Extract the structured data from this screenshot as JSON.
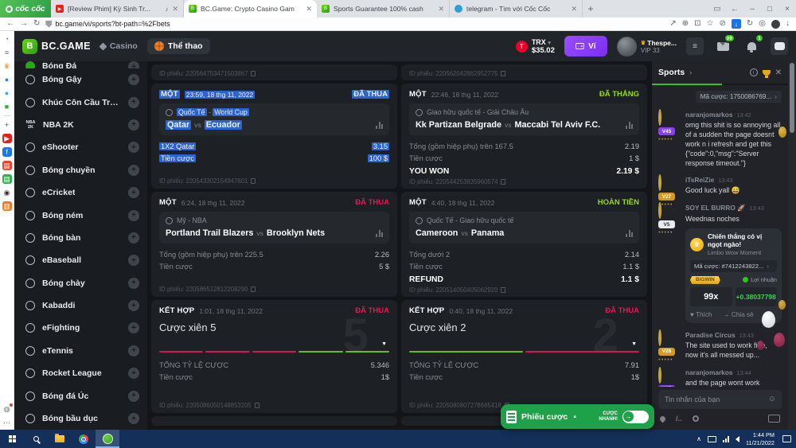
{
  "browser": {
    "brand": "cốc cốc",
    "tabs": [
      {
        "title": "[Review Phim] Kỳ Sinh Tr...",
        "icon": "youtube",
        "audio": true,
        "active": false
      },
      {
        "title": "BC.Game: Crypto Casino Gam",
        "icon": "bcgame",
        "audio": false,
        "active": true
      },
      {
        "title": "Sports Guarantee 100% cash",
        "icon": "bcgame",
        "audio": false,
        "active": false
      },
      {
        "title": "telegram - Tìm với Cốc Cốc",
        "icon": "telegram",
        "audio": false,
        "active": false
      }
    ],
    "url": "bc.game/vi/sports?bt-path=%2Fbets",
    "rail_icons": [
      "history-icon",
      "reading-list-icon",
      "crown-icon",
      "messenger-icon",
      "cloud-icon",
      "games-icon",
      "divider",
      "add-icon",
      "youtube-icon",
      "facebook-icon",
      "shopping-icon",
      "store-icon",
      "soccer-icon",
      "cart-icon"
    ],
    "rail_bottom": [
      "notification-bell-icon",
      "more-icon"
    ]
  },
  "navbar": {
    "logo": "BC.GAME",
    "casino": "Casino",
    "sports": "Thể thao",
    "currency": "TRX",
    "balance": "$35.02",
    "wallet": "Ví",
    "username": "Thespe...",
    "vip": "VIP 33",
    "mail_badge": "99",
    "bell_badge": "1"
  },
  "sidebar": [
    {
      "label": "Bóng Đá",
      "cut": true,
      "icon": "soccer"
    },
    {
      "label": "Bóng Gậy",
      "icon": "ball"
    },
    {
      "label": "Khúc Côn Cầu Trên Băng",
      "icon": "ball"
    },
    {
      "label": "NBA 2K",
      "icon": "nba2k"
    },
    {
      "label": "eShooter",
      "icon": "ball"
    },
    {
      "label": "Bóng chuyền",
      "icon": "ball"
    },
    {
      "label": "eCricket",
      "icon": "ball"
    },
    {
      "label": "Bóng ném",
      "icon": "ball"
    },
    {
      "label": "Bóng bàn",
      "icon": "ball"
    },
    {
      "label": "eBaseball",
      "icon": "ball"
    },
    {
      "label": "Bóng chày",
      "icon": "ball"
    },
    {
      "label": "Kabaddi",
      "icon": "ball"
    },
    {
      "label": "eFighting",
      "icon": "ball"
    },
    {
      "label": "eTennis",
      "icon": "ball"
    },
    {
      "label": "Rocket League",
      "icon": "ball"
    },
    {
      "label": "Bóng đá Úc",
      "icon": "ball"
    },
    {
      "label": "Bóng bầu dục",
      "icon": "ball"
    }
  ],
  "labels": {
    "stake": "Tiền cược",
    "ticket": "ID phiếu:",
    "total_odds": "TỔNG TỶ LỆ CƯỢC"
  },
  "top_partial_ids": [
    "220564753471503867",
    "220562042862952775"
  ],
  "cards": [
    {
      "kind": "single",
      "type": "MỘT",
      "time": "23:59, 18 thg 11, 2022",
      "status": "ĐÃ THUA",
      "status_kind": "loss",
      "selected": true,
      "league": "Quốc Tế - World Cup",
      "home": "Qatar",
      "away": "Ecuador",
      "selection": "1X2 Qatar",
      "odds": "3.15",
      "stake": "100 $",
      "id": "220543302154947601"
    },
    {
      "kind": "single",
      "type": "MỘT",
      "time": "22:46, 18 thg 11, 2022",
      "status": "ĐÃ THẮNG",
      "status_kind": "win",
      "league": "Giao hữu quốc tế - Giải Châu Âu",
      "home": "Kk Partizan Belgrade",
      "away": "Maccabi Tel Aviv F.C.",
      "selection": "Tổng (gồm hiệp phụ) trên 167.5",
      "odds": "2.19",
      "stake": "1 $",
      "result_label": "YOU WON",
      "result_value": "2.19 $",
      "id": "220544253835960574"
    },
    {
      "kind": "single",
      "type": "MỘT",
      "time": "6:24, 18 thg 11, 2022",
      "status": "ĐÃ THUA",
      "status_kind": "loss",
      "league": "Mỹ - NBA",
      "home": "Portland Trail Blazers",
      "away": "Brooklyn Nets",
      "selection": "Tổng (gồm hiệp phụ) trên 225.5",
      "odds": "2.26",
      "stake": "5 $",
      "id": "220586512812208290"
    },
    {
      "kind": "single",
      "type": "MỘT",
      "time": "4:40, 18 thg 11, 2022",
      "status": "HOÀN TIỀN",
      "status_kind": "win",
      "league": "Quốc Tế - Giao hữu quốc tế",
      "home": "Cameroon",
      "away": "Panama",
      "selection": "Tổng dưới 2",
      "odds": "2.14",
      "stake": "1.1 $",
      "result_label": "REFUND",
      "result_value": "1.1 $",
      "id": "220514050405062920"
    },
    {
      "kind": "combo",
      "type": "KẾT HỢP",
      "time": "1:01, 18 thg 11, 2022",
      "status": "ĐÃ THUA",
      "status_kind": "loss",
      "title": "Cược xiên 5",
      "ghost": "5",
      "segments": [
        "loss",
        "loss",
        "loss",
        "win",
        "win"
      ],
      "total_odds": "5.346",
      "stake": "1$",
      "id": "2205086050149853205"
    },
    {
      "kind": "combo",
      "type": "KẾT HỢP",
      "time": "0:40, 18 thg 11, 2022",
      "status": "ĐÃ THUA",
      "status_kind": "loss",
      "title": "Cược xiên 2",
      "ghost": "2",
      "segments": [
        "win",
        "loss"
      ],
      "total_odds": "7.91",
      "stake": "1$",
      "id": "2205080807278685418"
    }
  ],
  "betslip": {
    "label": "Phiếu cược",
    "quick_line1": "CƯỢC",
    "quick_line2": "NHANH!"
  },
  "chat": {
    "tab": "Sports",
    "bet_pill": "Mã cược: 1750086769...",
    "messages": [
      {
        "user": "naranjomarkos",
        "time": "13:42",
        "badge": "V45",
        "badge_color": "#8b3dff",
        "avatar_color": "#a0522d",
        "text": "omg this shit is so annoying all of a sudden the page doesnt work n i refresh and get this {\"code\":0,\"msg\":\"Server response timeout.\"}"
      },
      {
        "user": "iTsReiZie",
        "time": "13:43",
        "badge": "V27",
        "badge_color": "#d79b16",
        "avatar_color": "#c2738a",
        "text": "Good luck yall 😅"
      },
      {
        "user": "SOY EL BURRO 🚀",
        "time": "13:43",
        "badge": "V5",
        "badge_color": "#e8eaee",
        "badge_text": "#2b2f35",
        "avatar_color": "#9aa0a8",
        "text": "Weednas noches",
        "share": {
          "title": "Chiến thắng có vị ngọt ngào!",
          "subtitle": "Limbo Wow Moment",
          "bet_id": "Mã cược: #7412243822...",
          "ribbon": "BIGWIN",
          "profit_label": "Lợi nhuận",
          "multiplier": "99x",
          "profit": "+0.38037798",
          "like": "Thích",
          "share_label": "Chia sẻ"
        }
      },
      {
        "user": "Paradise Circus",
        "time": "13:43",
        "badge": "V28",
        "badge_color": "#d79b16",
        "avatar_color": "#4a4f57",
        "text": "The site used to work fine, now it's all messed up..."
      },
      {
        "user": "naranjomarkos",
        "time": "13:44",
        "badge": "V45",
        "badge_color": "#8b3dff",
        "avatar_color": "#a0522d",
        "text": "and the page wont work unless i turn my vpn on.. if its already on then i have to turn it off"
      }
    ],
    "input_placeholder": "Tin nhắn của bạn"
  },
  "taskbar": {
    "time": "1:44 PM",
    "date": "11/21/2022"
  }
}
